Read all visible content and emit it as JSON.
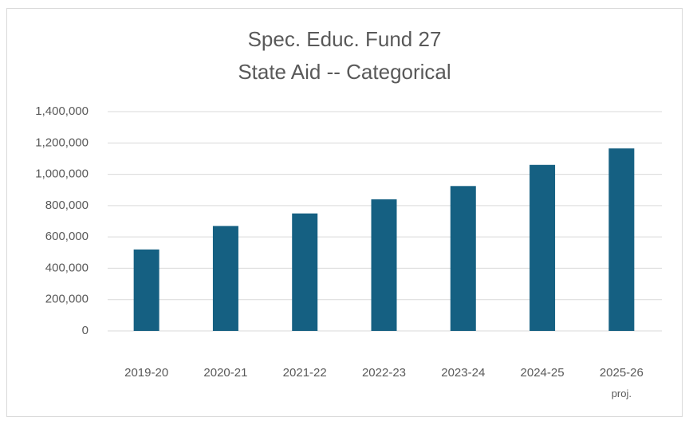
{
  "chart_data": {
    "type": "bar",
    "title": [
      "Spec. Educ. Fund 27",
      "State Aid -- Categorical"
    ],
    "categories": [
      "2019-20",
      "2020-21",
      "2021-22",
      "2022-23",
      "2023-24",
      "2024-25",
      "2025-26\nproj."
    ],
    "values": [
      520000,
      670000,
      750000,
      840000,
      925000,
      1060000,
      1165000
    ],
    "color": "#156082",
    "ylim": [
      0,
      1400000
    ],
    "yticks": [
      0,
      {
        "value": 200000,
        "label": "200,000"
      },
      {
        "value": 400000,
        "label": "400,000"
      },
      {
        "value": 600000,
        "label": "600,000"
      },
      {
        "value": 800000,
        "label": "800,000"
      },
      {
        "value": 1000000,
        "label": "1,000,000"
      },
      {
        "value": 1200000,
        "label": "1,200,000"
      },
      {
        "value": 1400000,
        "label": "1,400,000"
      }
    ],
    "grid": true
  }
}
